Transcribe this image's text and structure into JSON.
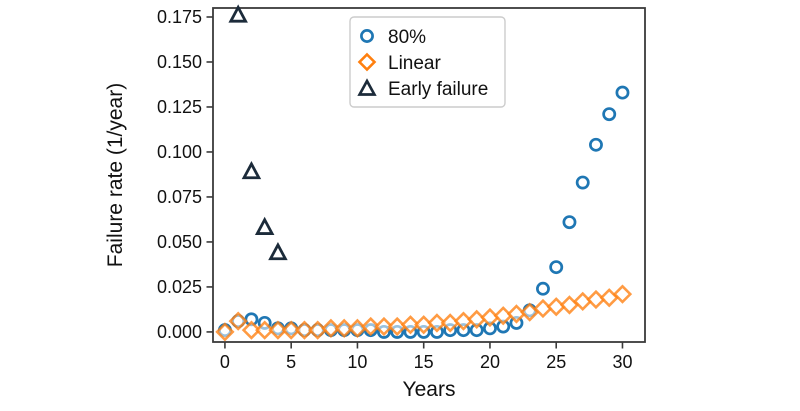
{
  "figure": {
    "background": "#ffffff",
    "text_color": "#111111",
    "spine_color": "#3a3a3a",
    "legend_border_color": "#cccccc"
  },
  "chart_data": {
    "type": "scatter",
    "title": "",
    "xlabel": "Years",
    "ylabel": "Failure rate (1/year)",
    "xlim": [
      -0.9,
      31.7
    ],
    "ylim": [
      -0.0056,
      0.18
    ],
    "x_ticks": [
      0,
      5,
      10,
      15,
      20,
      25,
      30
    ],
    "y_ticks": [
      0.0,
      0.025,
      0.05,
      0.075,
      0.1,
      0.125,
      0.15,
      0.175
    ],
    "grid": false,
    "legend_position": "upper-center-inside",
    "series": [
      {
        "name": "80%",
        "marker": "circle",
        "color": "#1f77b4",
        "x": [
          0,
          1,
          2,
          3,
          4,
          5,
          6,
          7,
          8,
          9,
          10,
          11,
          12,
          13,
          14,
          15,
          16,
          17,
          18,
          19,
          20,
          21,
          22,
          23,
          24,
          25,
          26,
          27,
          28,
          29,
          30
        ],
        "y": [
          0.001,
          0.006,
          0.007,
          0.005,
          0.002,
          0.002,
          0.001,
          0.001,
          0.001,
          0.001,
          0.001,
          0.001,
          0.0,
          0.0,
          0.0,
          0.0,
          0.0,
          0.001,
          0.001,
          0.001,
          0.002,
          0.003,
          0.005,
          0.012,
          0.024,
          0.036,
          0.061,
          0.083,
          0.104,
          0.121,
          0.133
        ]
      },
      {
        "name": "Linear",
        "marker": "diamond",
        "color": "#ff7f0e",
        "x": [
          0,
          1,
          2,
          3,
          4,
          5,
          6,
          7,
          8,
          9,
          10,
          11,
          12,
          13,
          14,
          15,
          16,
          17,
          18,
          19,
          20,
          21,
          22,
          23,
          24,
          25,
          26,
          27,
          28,
          29,
          30
        ],
        "y": [
          0.0,
          0.006,
          0.001,
          0.001,
          0.001,
          0.001,
          0.001,
          0.001,
          0.002,
          0.002,
          0.002,
          0.003,
          0.003,
          0.003,
          0.004,
          0.004,
          0.005,
          0.005,
          0.006,
          0.007,
          0.008,
          0.009,
          0.01,
          0.011,
          0.013,
          0.014,
          0.015,
          0.017,
          0.018,
          0.019,
          0.021
        ]
      },
      {
        "name": "Early failure",
        "marker": "triangle-up",
        "color": "#1c2b3a",
        "x": [
          1,
          2,
          3,
          4
        ],
        "y": [
          0.176,
          0.089,
          0.058,
          0.044
        ]
      }
    ]
  }
}
